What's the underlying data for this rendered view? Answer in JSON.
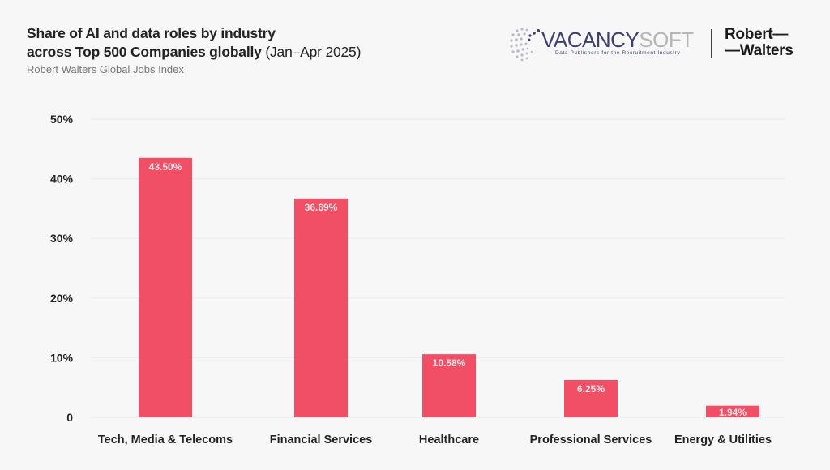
{
  "header": {
    "title_line1": "Share of AI and data roles by industry",
    "title_line2": "across Top 500 Companies globally",
    "title_period": "(Jan–Apr 2025)",
    "subtitle": "Robert Walters Global Jobs Index"
  },
  "logos": {
    "vacancysoft_part1": "VACANCY",
    "vacancysoft_part2": "SOFT",
    "vacancysoft_tagline": "Data Publishers for the Recruitment Industry",
    "robert_walters_line1": "Robert—",
    "robert_walters_line2": "—Walters"
  },
  "colors": {
    "bar": "#f04f66",
    "background": "#f7f7f7",
    "gridline": "#ececec"
  },
  "chart_data": {
    "type": "bar",
    "title": "Share of AI and data roles by industry across Top 500 Companies globally (Jan–Apr 2025)",
    "subtitle": "Robert Walters Global Jobs Index",
    "xlabel": "",
    "ylabel": "",
    "categories": [
      "Tech, Media & Telecoms",
      "Financial Services",
      "Healthcare",
      "Professional Services",
      "Energy & Utilities"
    ],
    "values": [
      43.5,
      36.69,
      10.58,
      6.25,
      1.94
    ],
    "data_labels": [
      "43.50%",
      "36.69%",
      "10.58%",
      "6.25%",
      "1.94%"
    ],
    "ylim": [
      0,
      50
    ],
    "yticks": [
      0,
      10,
      20,
      30,
      40,
      50
    ],
    "ytick_labels": [
      "0",
      "10%",
      "20%",
      "30%",
      "40%",
      "50%"
    ],
    "grid": true,
    "legend": "none"
  }
}
